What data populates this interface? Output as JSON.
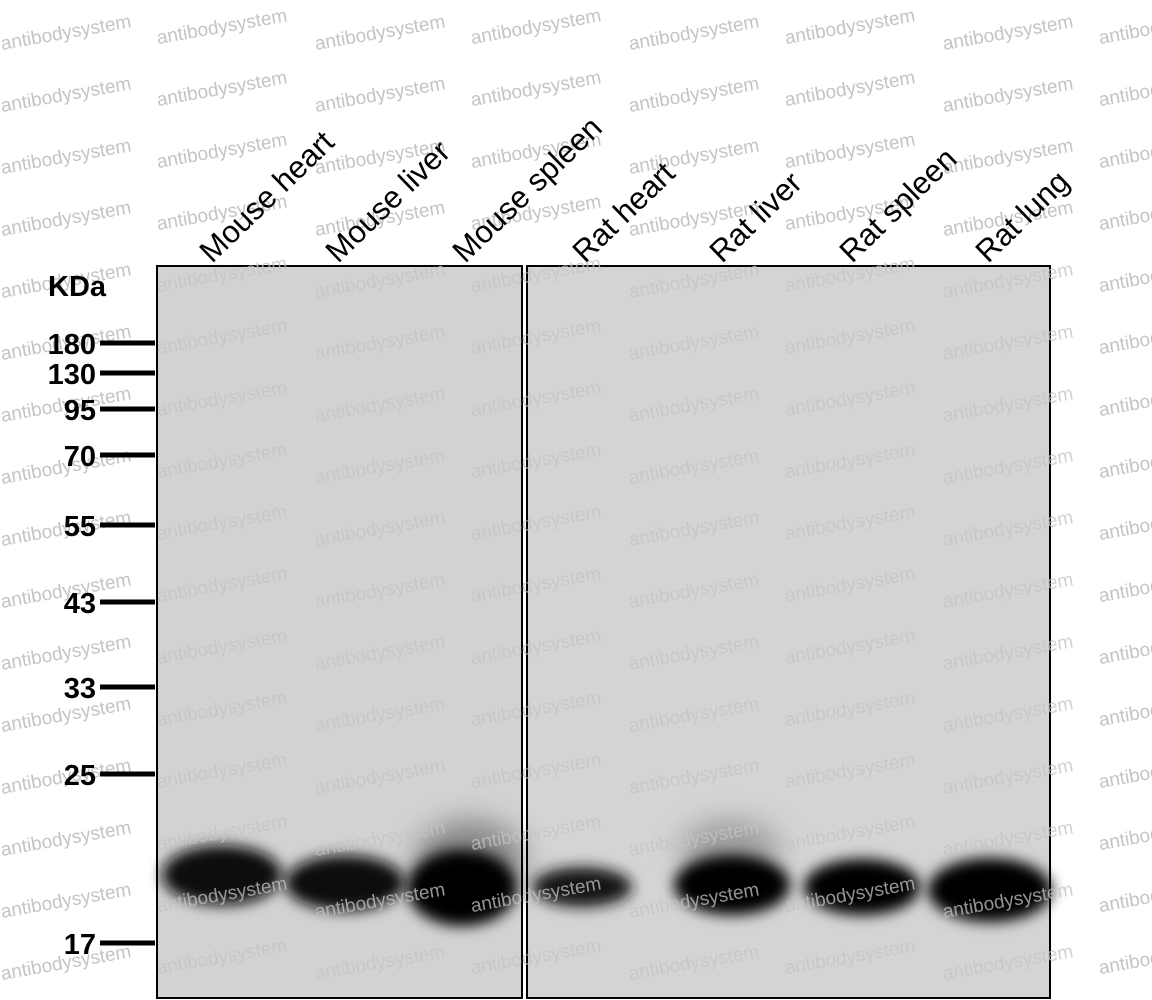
{
  "lanes": [
    "Mouse heart",
    "Mouse liver",
    "Mouse spleen",
    "Rat heart",
    "Rat liver",
    "Rat spleen",
    "Rat lung"
  ],
  "unit": "KDa",
  "markers": [
    180,
    130,
    95,
    70,
    55,
    43,
    33,
    25,
    17
  ],
  "watermark": "antibodysystem"
}
